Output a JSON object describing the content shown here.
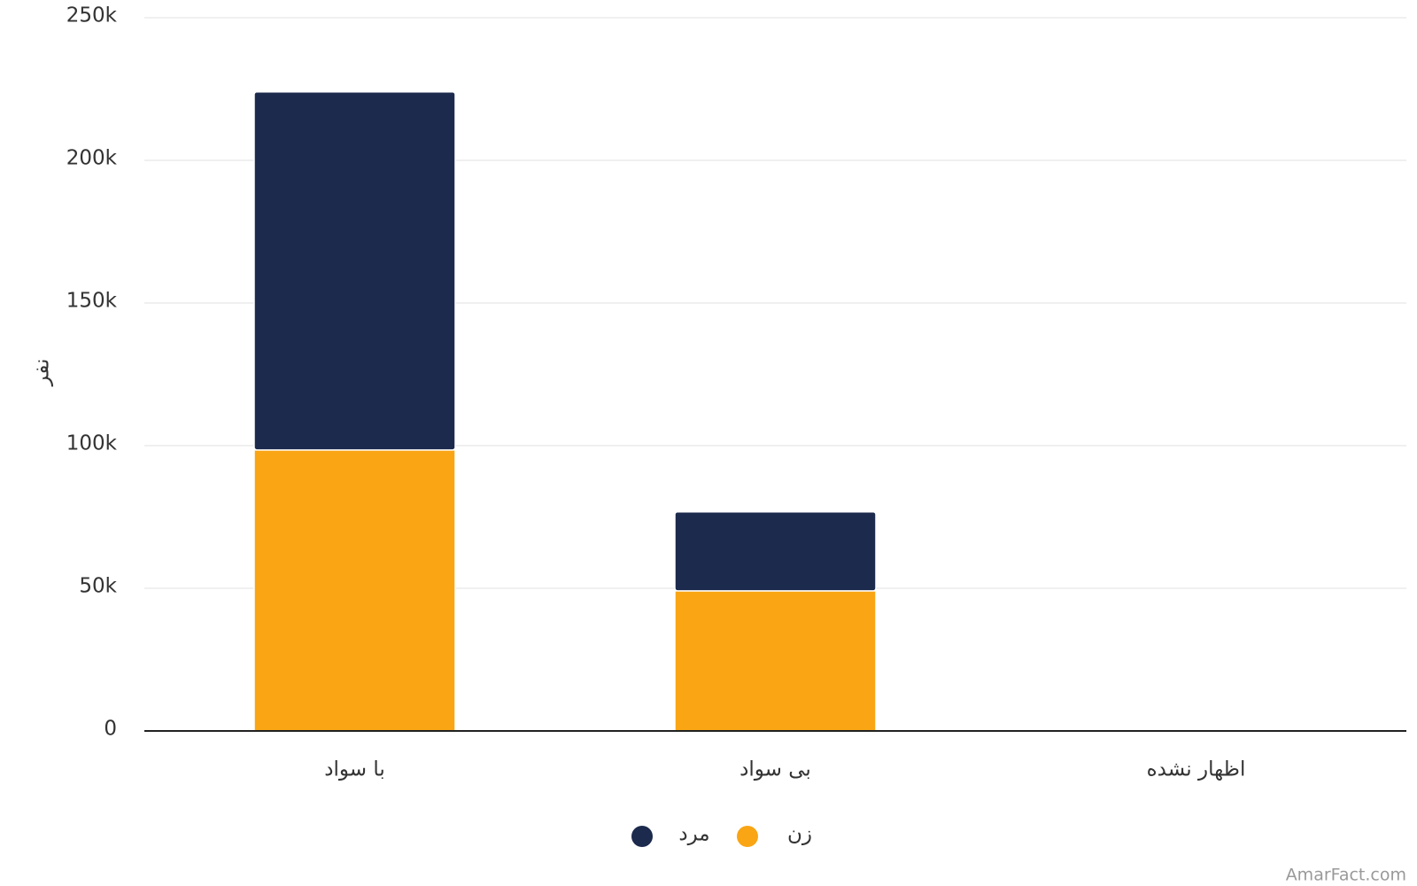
{
  "chart_data": {
    "type": "stacked-bar",
    "y_label": "نفر",
    "categories": [
      "با سواد",
      "بی سواد",
      "اظهار نشده"
    ],
    "series": [
      {
        "name": "زن",
        "color": "#f9a514",
        "values": [
          98500,
          49100,
          0
        ]
      },
      {
        "name": "مرد",
        "color": "#1c2a4d",
        "values": [
          125500,
          27700,
          0
        ]
      }
    ],
    "ylim": [
      0,
      250000
    ],
    "yticks": [
      0,
      {
        "value": 50000,
        "label": "50k"
      },
      {
        "value": 100000,
        "label": "100k"
      },
      {
        "value": 150000,
        "label": "150k"
      },
      {
        "value": 200000,
        "label": "200k"
      },
      {
        "value": 250000,
        "label": "250k"
      }
    ],
    "grid": true,
    "legend": "bottom",
    "watermark": "AmarFact.com"
  }
}
